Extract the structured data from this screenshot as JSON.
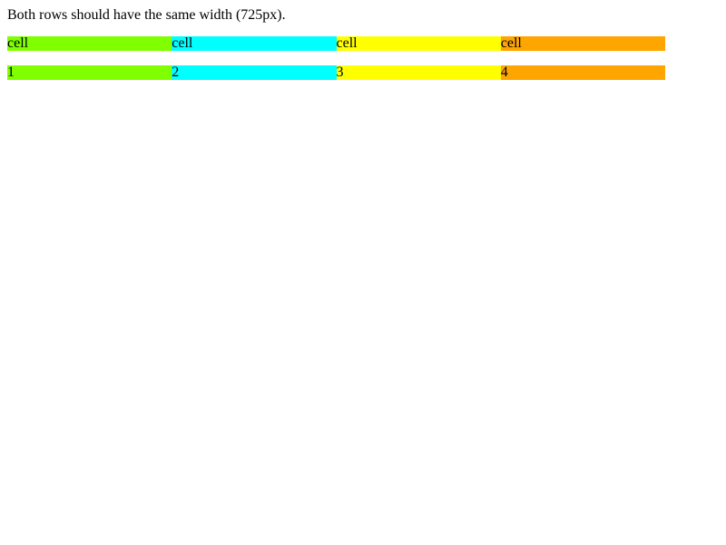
{
  "intro_text": "Both rows should have the same width (725px).",
  "colors": {
    "green": "#7fff00",
    "cyan": "#00ffff",
    "yellow": "#ffff00",
    "orange": "#ffa500"
  },
  "rows": [
    {
      "cells": [
        {
          "label": "cell",
          "color": "#7fff00"
        },
        {
          "label": "cell",
          "color": "#00ffff"
        },
        {
          "label": "cell",
          "color": "#ffff00"
        },
        {
          "label": "cell",
          "color": "#ffa500"
        }
      ]
    },
    {
      "cells": [
        {
          "label": "1",
          "color": "#7fff00"
        },
        {
          "label": "2",
          "color": "#00ffff"
        },
        {
          "label": "3",
          "color": "#ffff00"
        },
        {
          "label": "4",
          "color": "#ffa500"
        }
      ]
    }
  ]
}
